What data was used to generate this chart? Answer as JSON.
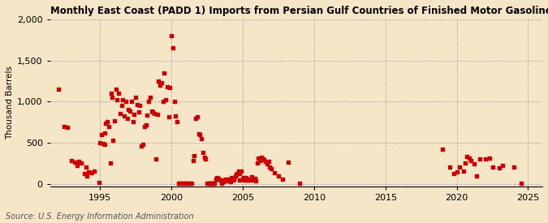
{
  "title": "Monthly East Coast (PADD 1) Imports from Persian Gulf Countries of Finished Motor Gasoline",
  "ylabel": "Thousand Barrels",
  "source": "Source: U.S. Energy Information Administration",
  "background_color": "#f5e6c8",
  "plot_bg_color": "#f5e6c8",
  "marker_color": "#cc0000",
  "xlim": [
    1991.5,
    2026
  ],
  "ylim": [
    -30,
    2000
  ],
  "yticks": [
    0,
    500,
    1000,
    1500,
    2000
  ],
  "xticks": [
    1995,
    2000,
    2005,
    2010,
    2015,
    2020,
    2025
  ],
  "scatter_data": [
    [
      1992.1,
      1150
    ],
    [
      1992.5,
      700
    ],
    [
      1992.7,
      690
    ],
    [
      1993.0,
      280
    ],
    [
      1993.2,
      260
    ],
    [
      1993.4,
      220
    ],
    [
      1993.5,
      270
    ],
    [
      1993.7,
      250
    ],
    [
      1993.9,
      130
    ],
    [
      1994.0,
      200
    ],
    [
      1994.1,
      100
    ],
    [
      1994.2,
      150
    ],
    [
      1994.4,
      140
    ],
    [
      1994.6,
      160
    ],
    [
      1994.9,
      20
    ],
    [
      1995.0,
      500
    ],
    [
      1995.1,
      600
    ],
    [
      1995.2,
      490
    ],
    [
      1995.3,
      620
    ],
    [
      1995.35,
      480
    ],
    [
      1995.4,
      740
    ],
    [
      1995.5,
      760
    ],
    [
      1995.6,
      700
    ],
    [
      1995.7,
      250
    ],
    [
      1995.8,
      1100
    ],
    [
      1995.85,
      1050
    ],
    [
      1995.9,
      530
    ],
    [
      1996.0,
      770
    ],
    [
      1996.1,
      1150
    ],
    [
      1996.2,
      1020
    ],
    [
      1996.3,
      1100
    ],
    [
      1996.4,
      860
    ],
    [
      1996.5,
      950
    ],
    [
      1996.6,
      1020
    ],
    [
      1996.7,
      830
    ],
    [
      1996.8,
      1000
    ],
    [
      1996.9,
      800
    ],
    [
      1997.0,
      900
    ],
    [
      1997.1,
      880
    ],
    [
      1997.2,
      1000
    ],
    [
      1997.3,
      760
    ],
    [
      1997.4,
      850
    ],
    [
      1997.5,
      1050
    ],
    [
      1997.6,
      960
    ],
    [
      1997.7,
      870
    ],
    [
      1997.8,
      950
    ],
    [
      1997.9,
      460
    ],
    [
      1998.0,
      480
    ],
    [
      1998.1,
      700
    ],
    [
      1998.2,
      720
    ],
    [
      1998.3,
      840
    ],
    [
      1998.4,
      1000
    ],
    [
      1998.5,
      1050
    ],
    [
      1998.6,
      880
    ],
    [
      1998.7,
      870
    ],
    [
      1998.8,
      860
    ],
    [
      1998.9,
      300
    ],
    [
      1999.0,
      850
    ],
    [
      1999.1,
      1250
    ],
    [
      1999.2,
      1200
    ],
    [
      1999.3,
      1230
    ],
    [
      1999.4,
      1000
    ],
    [
      1999.5,
      1350
    ],
    [
      1999.6,
      1020
    ],
    [
      1999.7,
      1180
    ],
    [
      1999.8,
      820
    ],
    [
      1999.9,
      1170
    ],
    [
      2000.0,
      1800
    ],
    [
      2000.1,
      1650
    ],
    [
      2000.2,
      1000
    ],
    [
      2000.3,
      830
    ],
    [
      2000.4,
      760
    ],
    [
      2000.5,
      5
    ],
    [
      2000.6,
      5
    ],
    [
      2000.7,
      5
    ],
    [
      2000.8,
      5
    ],
    [
      2000.9,
      5
    ],
    [
      2001.0,
      5
    ],
    [
      2001.1,
      5
    ],
    [
      2001.2,
      5
    ],
    [
      2001.3,
      5
    ],
    [
      2001.4,
      5
    ],
    [
      2001.5,
      280
    ],
    [
      2001.6,
      340
    ],
    [
      2001.7,
      800
    ],
    [
      2001.8,
      820
    ],
    [
      2001.9,
      610
    ],
    [
      2002.0,
      600
    ],
    [
      2002.1,
      550
    ],
    [
      2002.2,
      380
    ],
    [
      2002.3,
      320
    ],
    [
      2002.4,
      300
    ],
    [
      2002.5,
      5
    ],
    [
      2002.6,
      5
    ],
    [
      2002.65,
      5
    ],
    [
      2002.7,
      5
    ],
    [
      2002.8,
      5
    ],
    [
      2002.85,
      5
    ],
    [
      2002.9,
      5
    ],
    [
      2002.95,
      5
    ],
    [
      2003.0,
      5
    ],
    [
      2003.1,
      60
    ],
    [
      2003.2,
      80
    ],
    [
      2003.3,
      70
    ],
    [
      2003.4,
      50
    ],
    [
      2003.5,
      5
    ],
    [
      2003.6,
      30
    ],
    [
      2003.65,
      30
    ],
    [
      2003.7,
      50
    ],
    [
      2003.8,
      60
    ],
    [
      2003.9,
      40
    ],
    [
      2004.0,
      60
    ],
    [
      2004.05,
      40
    ],
    [
      2004.1,
      50
    ],
    [
      2004.15,
      30
    ],
    [
      2004.2,
      80
    ],
    [
      2004.3,
      50
    ],
    [
      2004.35,
      70
    ],
    [
      2004.4,
      60
    ],
    [
      2004.5,
      100
    ],
    [
      2004.55,
      120
    ],
    [
      2004.6,
      130
    ],
    [
      2004.7,
      160
    ],
    [
      2004.75,
      50
    ],
    [
      2004.8,
      130
    ],
    [
      2004.9,
      160
    ],
    [
      2005.0,
      60
    ],
    [
      2005.05,
      80
    ],
    [
      2005.1,
      50
    ],
    [
      2005.2,
      80
    ],
    [
      2005.3,
      50
    ],
    [
      2005.35,
      50
    ],
    [
      2005.4,
      60
    ],
    [
      2005.5,
      50
    ],
    [
      2005.6,
      90
    ],
    [
      2005.65,
      60
    ],
    [
      2005.7,
      60
    ],
    [
      2005.8,
      50
    ],
    [
      2005.85,
      70
    ],
    [
      2005.9,
      40
    ],
    [
      2006.0,
      250
    ],
    [
      2006.1,
      310
    ],
    [
      2006.2,
      280
    ],
    [
      2006.3,
      320
    ],
    [
      2006.4,
      300
    ],
    [
      2006.5,
      290
    ],
    [
      2006.6,
      270
    ],
    [
      2006.7,
      240
    ],
    [
      2006.8,
      270
    ],
    [
      2006.9,
      200
    ],
    [
      2007.0,
      180
    ],
    [
      2007.2,
      140
    ],
    [
      2007.5,
      100
    ],
    [
      2007.8,
      60
    ],
    [
      2008.2,
      260
    ],
    [
      2009.0,
      5
    ],
    [
      2019.0,
      420
    ],
    [
      2019.5,
      200
    ],
    [
      2019.8,
      130
    ],
    [
      2020.0,
      150
    ],
    [
      2020.2,
      200
    ],
    [
      2020.5,
      160
    ],
    [
      2020.6,
      250
    ],
    [
      2020.7,
      330
    ],
    [
      2020.85,
      310
    ],
    [
      2021.0,
      280
    ],
    [
      2021.2,
      240
    ],
    [
      2021.4,
      100
    ],
    [
      2021.6,
      300
    ],
    [
      2022.0,
      300
    ],
    [
      2022.3,
      310
    ],
    [
      2022.5,
      200
    ],
    [
      2023.0,
      190
    ],
    [
      2023.2,
      220
    ],
    [
      2024.0,
      200
    ],
    [
      2024.5,
      5
    ]
  ]
}
